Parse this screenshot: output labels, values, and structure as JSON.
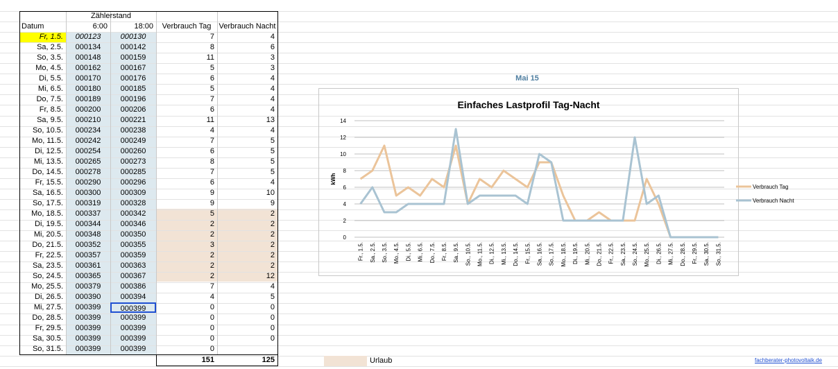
{
  "sheet": {
    "header_top": "Zählerstand",
    "col_datum": "Datum",
    "col_6": "6:00",
    "col_18": "18:00",
    "col_tag": "Verbrauch Tag",
    "col_nacht": "Verbrauch Nacht",
    "rows": [
      {
        "datum": "Fr, 1.5.",
        "z6": "000123",
        "z18": "000130",
        "tag": "7",
        "nacht": "4"
      },
      {
        "datum": "Sa, 2.5.",
        "z6": "000134",
        "z18": "000142",
        "tag": "8",
        "nacht": "6"
      },
      {
        "datum": "So, 3.5.",
        "z6": "000148",
        "z18": "000159",
        "tag": "11",
        "nacht": "3"
      },
      {
        "datum": "Mo, 4.5.",
        "z6": "000162",
        "z18": "000167",
        "tag": "5",
        "nacht": "3"
      },
      {
        "datum": "Di, 5.5.",
        "z6": "000170",
        "z18": "000176",
        "tag": "6",
        "nacht": "4"
      },
      {
        "datum": "Mi, 6.5.",
        "z6": "000180",
        "z18": "000185",
        "tag": "5",
        "nacht": "4"
      },
      {
        "datum": "Do, 7.5.",
        "z6": "000189",
        "z18": "000196",
        "tag": "7",
        "nacht": "4"
      },
      {
        "datum": "Fr, 8.5.",
        "z6": "000200",
        "z18": "000206",
        "tag": "6",
        "nacht": "4"
      },
      {
        "datum": "Sa, 9.5.",
        "z6": "000210",
        "z18": "000221",
        "tag": "11",
        "nacht": "13"
      },
      {
        "datum": "So, 10.5.",
        "z6": "000234",
        "z18": "000238",
        "tag": "4",
        "nacht": "4"
      },
      {
        "datum": "Mo, 11.5.",
        "z6": "000242",
        "z18": "000249",
        "tag": "7",
        "nacht": "5"
      },
      {
        "datum": "Di, 12.5.",
        "z6": "000254",
        "z18": "000260",
        "tag": "6",
        "nacht": "5"
      },
      {
        "datum": "Mi, 13.5.",
        "z6": "000265",
        "z18": "000273",
        "tag": "8",
        "nacht": "5"
      },
      {
        "datum": "Do, 14.5.",
        "z6": "000278",
        "z18": "000285",
        "tag": "7",
        "nacht": "5"
      },
      {
        "datum": "Fr, 15.5.",
        "z6": "000290",
        "z18": "000296",
        "tag": "6",
        "nacht": "4"
      },
      {
        "datum": "Sa, 16.5.",
        "z6": "000300",
        "z18": "000309",
        "tag": "9",
        "nacht": "10"
      },
      {
        "datum": "So, 17.5.",
        "z6": "000319",
        "z18": "000328",
        "tag": "9",
        "nacht": "9"
      },
      {
        "datum": "Mo, 18.5.",
        "z6": "000337",
        "z18": "000342",
        "tag": "5",
        "nacht": "2"
      },
      {
        "datum": "Di, 19.5.",
        "z6": "000344",
        "z18": "000346",
        "tag": "2",
        "nacht": "2"
      },
      {
        "datum": "Mi, 20.5.",
        "z6": "000348",
        "z18": "000350",
        "tag": "2",
        "nacht": "2"
      },
      {
        "datum": "Do, 21.5.",
        "z6": "000352",
        "z18": "000355",
        "tag": "3",
        "nacht": "2"
      },
      {
        "datum": "Fr, 22.5.",
        "z6": "000357",
        "z18": "000359",
        "tag": "2",
        "nacht": "2"
      },
      {
        "datum": "Sa, 23.5.",
        "z6": "000361",
        "z18": "000363",
        "tag": "2",
        "nacht": "2"
      },
      {
        "datum": "So, 24.5.",
        "z6": "000365",
        "z18": "000367",
        "tag": "2",
        "nacht": "12"
      },
      {
        "datum": "Mo, 25.5.",
        "z6": "000379",
        "z18": "000386",
        "tag": "7",
        "nacht": "4"
      },
      {
        "datum": "Di, 26.5.",
        "z6": "000390",
        "z18": "000394",
        "tag": "4",
        "nacht": "5"
      },
      {
        "datum": "Mi, 27.5.",
        "z6": "000399",
        "z18": "000399",
        "tag": "0",
        "nacht": "0"
      },
      {
        "datum": "Do, 28.5.",
        "z6": "000399",
        "z18": "000399",
        "tag": "0",
        "nacht": "0"
      },
      {
        "datum": "Fr, 29.5.",
        "z6": "000399",
        "z18": "000399",
        "tag": "0",
        "nacht": "0"
      },
      {
        "datum": "Sa, 30.5.",
        "z6": "000399",
        "z18": "000399",
        "tag": "0",
        "nacht": "0"
      },
      {
        "datum": "So, 31.5.",
        "z6": "000399",
        "z18": "000399",
        "tag": "0",
        "nacht": ""
      }
    ],
    "total_tag": "151",
    "total_nacht": "125",
    "legend_label": "Urlaub",
    "footer_link": "fachberater-photovoltaik.de",
    "sheet_title": "Mai 15"
  },
  "colors": {
    "tag": "#ebc49a",
    "nacht": "#a9c3d2",
    "meter_cell": "#dde9ef",
    "vacation": "#f2e3d5",
    "highlight": "#ffff00",
    "selection": "#1f4fd1"
  },
  "chart_data": {
    "type": "line",
    "title": "Einfaches Lastprofil Tag-Nacht",
    "ylabel": "kWh",
    "xlabel": "",
    "ylim": [
      0,
      14
    ],
    "yticks": [
      "0",
      "2",
      "4",
      "6",
      "8",
      "10",
      "12",
      "14"
    ],
    "grid": true,
    "legend_position": "right",
    "categories": [
      "Fr., 1.5.",
      "Sa., 2.5.",
      "So., 3.5.",
      "Mo., 4.5.",
      "Di., 5.5.",
      "Mi., 6.5.",
      "Do., 7.5.",
      "Fr., 8.5.",
      "Sa., 9.5.",
      "So., 10.5.",
      "Mo., 11.5.",
      "Di., 12.5.",
      "Mi., 13.5.",
      "Do., 14.5.",
      "Fr., 15.5.",
      "Sa., 16.5.",
      "So., 17.5.",
      "Mo., 18.5.",
      "Di., 19.5.",
      "Mi., 20.5.",
      "Do., 21.5.",
      "Fr., 22.5.",
      "Sa., 23.5.",
      "So., 24.5.",
      "Mo., 25.5.",
      "Di., 26.5.",
      "Mi., 27.5.",
      "Do., 28.5.",
      "Fr., 29.5.",
      "Sa., 30.5.",
      "So., 31.5."
    ],
    "series": [
      {
        "name": "Verbrauch Tag",
        "values": [
          7,
          8,
          11,
          5,
          6,
          5,
          7,
          6,
          11,
          4,
          7,
          6,
          8,
          7,
          6,
          9,
          9,
          5,
          2,
          2,
          3,
          2,
          2,
          2,
          7,
          4,
          0,
          0,
          0,
          0,
          0
        ]
      },
      {
        "name": "Verbrauch Nacht",
        "values": [
          4,
          6,
          3,
          3,
          4,
          4,
          4,
          4,
          13,
          4,
          5,
          5,
          5,
          5,
          4,
          10,
          9,
          2,
          2,
          2,
          2,
          2,
          2,
          12,
          4,
          5,
          0,
          0,
          0,
          0,
          0
        ]
      }
    ]
  }
}
